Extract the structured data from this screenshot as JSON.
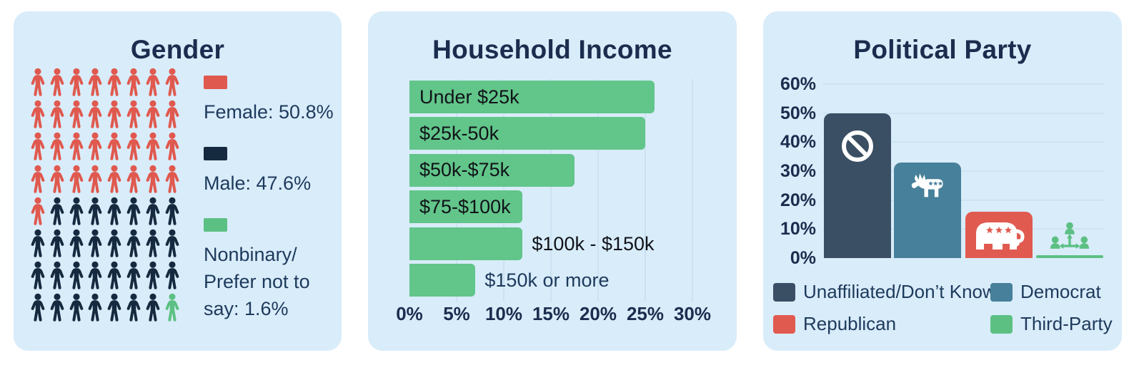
{
  "colors": {
    "panel_bg": "#d9ecfa",
    "title_navy": "#1b2d4e",
    "text_navy": "#1d3a5c",
    "label_black": "#101318",
    "female_red": "#e0594e",
    "male_navy": "#15293f",
    "nonbinary_green": "#5cc083",
    "income_green": "#62c58a",
    "unaffiliated_slate": "#3a4f63",
    "democrat_teal": "#47809a",
    "republican_red": "#e15a4f",
    "third_party_green": "#5cc083",
    "grid_income": "#cbe2f2",
    "grid_party": "#cde4f2"
  },
  "gender": {
    "title": "Gender",
    "waffle": {
      "rows": 8,
      "cols": 8,
      "groups": [
        {
          "name": "female",
          "count": 33,
          "color": "#e0594e"
        },
        {
          "name": "male",
          "count": 30,
          "color": "#15293f"
        },
        {
          "name": "nonbinary",
          "count": 1,
          "color": "#5cc083"
        }
      ]
    },
    "legend": [
      {
        "label": "Female: 50.8%",
        "color": "#e0594e"
      },
      {
        "label": "Male: 47.6%",
        "color": "#15293f"
      },
      {
        "label": "Nonbinary/\nPrefer not to\nsay: 1.6%",
        "color": "#5cc083"
      }
    ]
  },
  "income": {
    "title": "Household Income",
    "x_ticks": [
      "0%",
      "5%",
      "10%",
      "15%",
      "20%",
      "25%",
      "30%"
    ],
    "x_max": 30,
    "bar_color": "#62c58a",
    "bars": [
      {
        "label": "Under $25k",
        "value": 26,
        "label_inside": true,
        "label_color": "#101318"
      },
      {
        "label": "$25k-50k",
        "value": 25,
        "label_inside": true,
        "label_color": "#101318"
      },
      {
        "label": "$50k-$75k",
        "value": 17.5,
        "label_inside": true,
        "label_color": "#101318"
      },
      {
        "label": "$75-$100k",
        "value": 12,
        "label_inside": true,
        "label_color": "#101318"
      },
      {
        "label": "$100k - $150k",
        "value": 12,
        "label_inside": false,
        "label_color": "#101318"
      },
      {
        "label": "$150k or more",
        "value": 7,
        "label_inside": false,
        "label_color": "#1d3a5c"
      }
    ]
  },
  "party": {
    "title": "Political Party",
    "y_ticks": [
      "0%",
      "10%",
      "20%",
      "30%",
      "40%",
      "50%",
      "60%"
    ],
    "y_max": 60,
    "bars": [
      {
        "label": "Unaffiliated/Don’t Know",
        "value": 50,
        "color": "#3a4f63",
        "icon": "no-symbol"
      },
      {
        "label": "Democrat",
        "value": 33,
        "color": "#47809a",
        "icon": "donkey"
      },
      {
        "label": "Republican",
        "value": 16,
        "color": "#e15a4f",
        "icon": "elephant"
      },
      {
        "label": "Third-Party",
        "value": 1,
        "color": "#5cc083",
        "icon": "people-network",
        "icon_above": true
      }
    ],
    "legend": [
      {
        "label": "Unaffiliated/Don’t Know",
        "color": "#3a4f63"
      },
      {
        "label": "Democrat",
        "color": "#47809a"
      },
      {
        "label": "Republican",
        "color": "#e15a4f"
      },
      {
        "label": "Third-Party",
        "color": "#5cc083"
      }
    ]
  },
  "chart_data": [
    {
      "type": "pictogram",
      "title": "Gender",
      "categories": [
        "Female",
        "Male",
        "Nonbinary/Prefer not to say"
      ],
      "values": [
        50.8,
        47.6,
        1.6
      ],
      "units": "%",
      "icon_counts": [
        33,
        30,
        1
      ],
      "grid": {
        "rows": 8,
        "cols": 8,
        "total_icons": 64
      },
      "colors": [
        "#e0594e",
        "#15293f",
        "#5cc083"
      ],
      "legend_position": "right"
    },
    {
      "type": "bar",
      "orientation": "horizontal",
      "title": "Household Income",
      "categories": [
        "Under $25k",
        "$25k-50k",
        "$50k-$75k",
        "$75-$100k",
        "$100k - $150k",
        "$150k or more"
      ],
      "values": [
        26,
        25,
        17.5,
        12,
        12,
        7
      ],
      "xlabel": "",
      "ylabel": "",
      "xlim": [
        0,
        30
      ],
      "xticks": [
        "0%",
        "5%",
        "10%",
        "15%",
        "20%",
        "25%",
        "30%"
      ],
      "grid": true,
      "bar_color": "#62c58a"
    },
    {
      "type": "bar",
      "orientation": "vertical",
      "title": "Political Party",
      "categories": [
        "Unaffiliated/Don’t Know",
        "Democrat",
        "Republican",
        "Third-Party"
      ],
      "values": [
        50,
        33,
        16,
        1
      ],
      "ylim": [
        0,
        60
      ],
      "yticks": [
        "0%",
        "10%",
        "20%",
        "30%",
        "40%",
        "50%",
        "60%"
      ],
      "colors": [
        "#3a4f63",
        "#47809a",
        "#e15a4f",
        "#5cc083"
      ],
      "grid": true,
      "legend_position": "bottom"
    }
  ]
}
